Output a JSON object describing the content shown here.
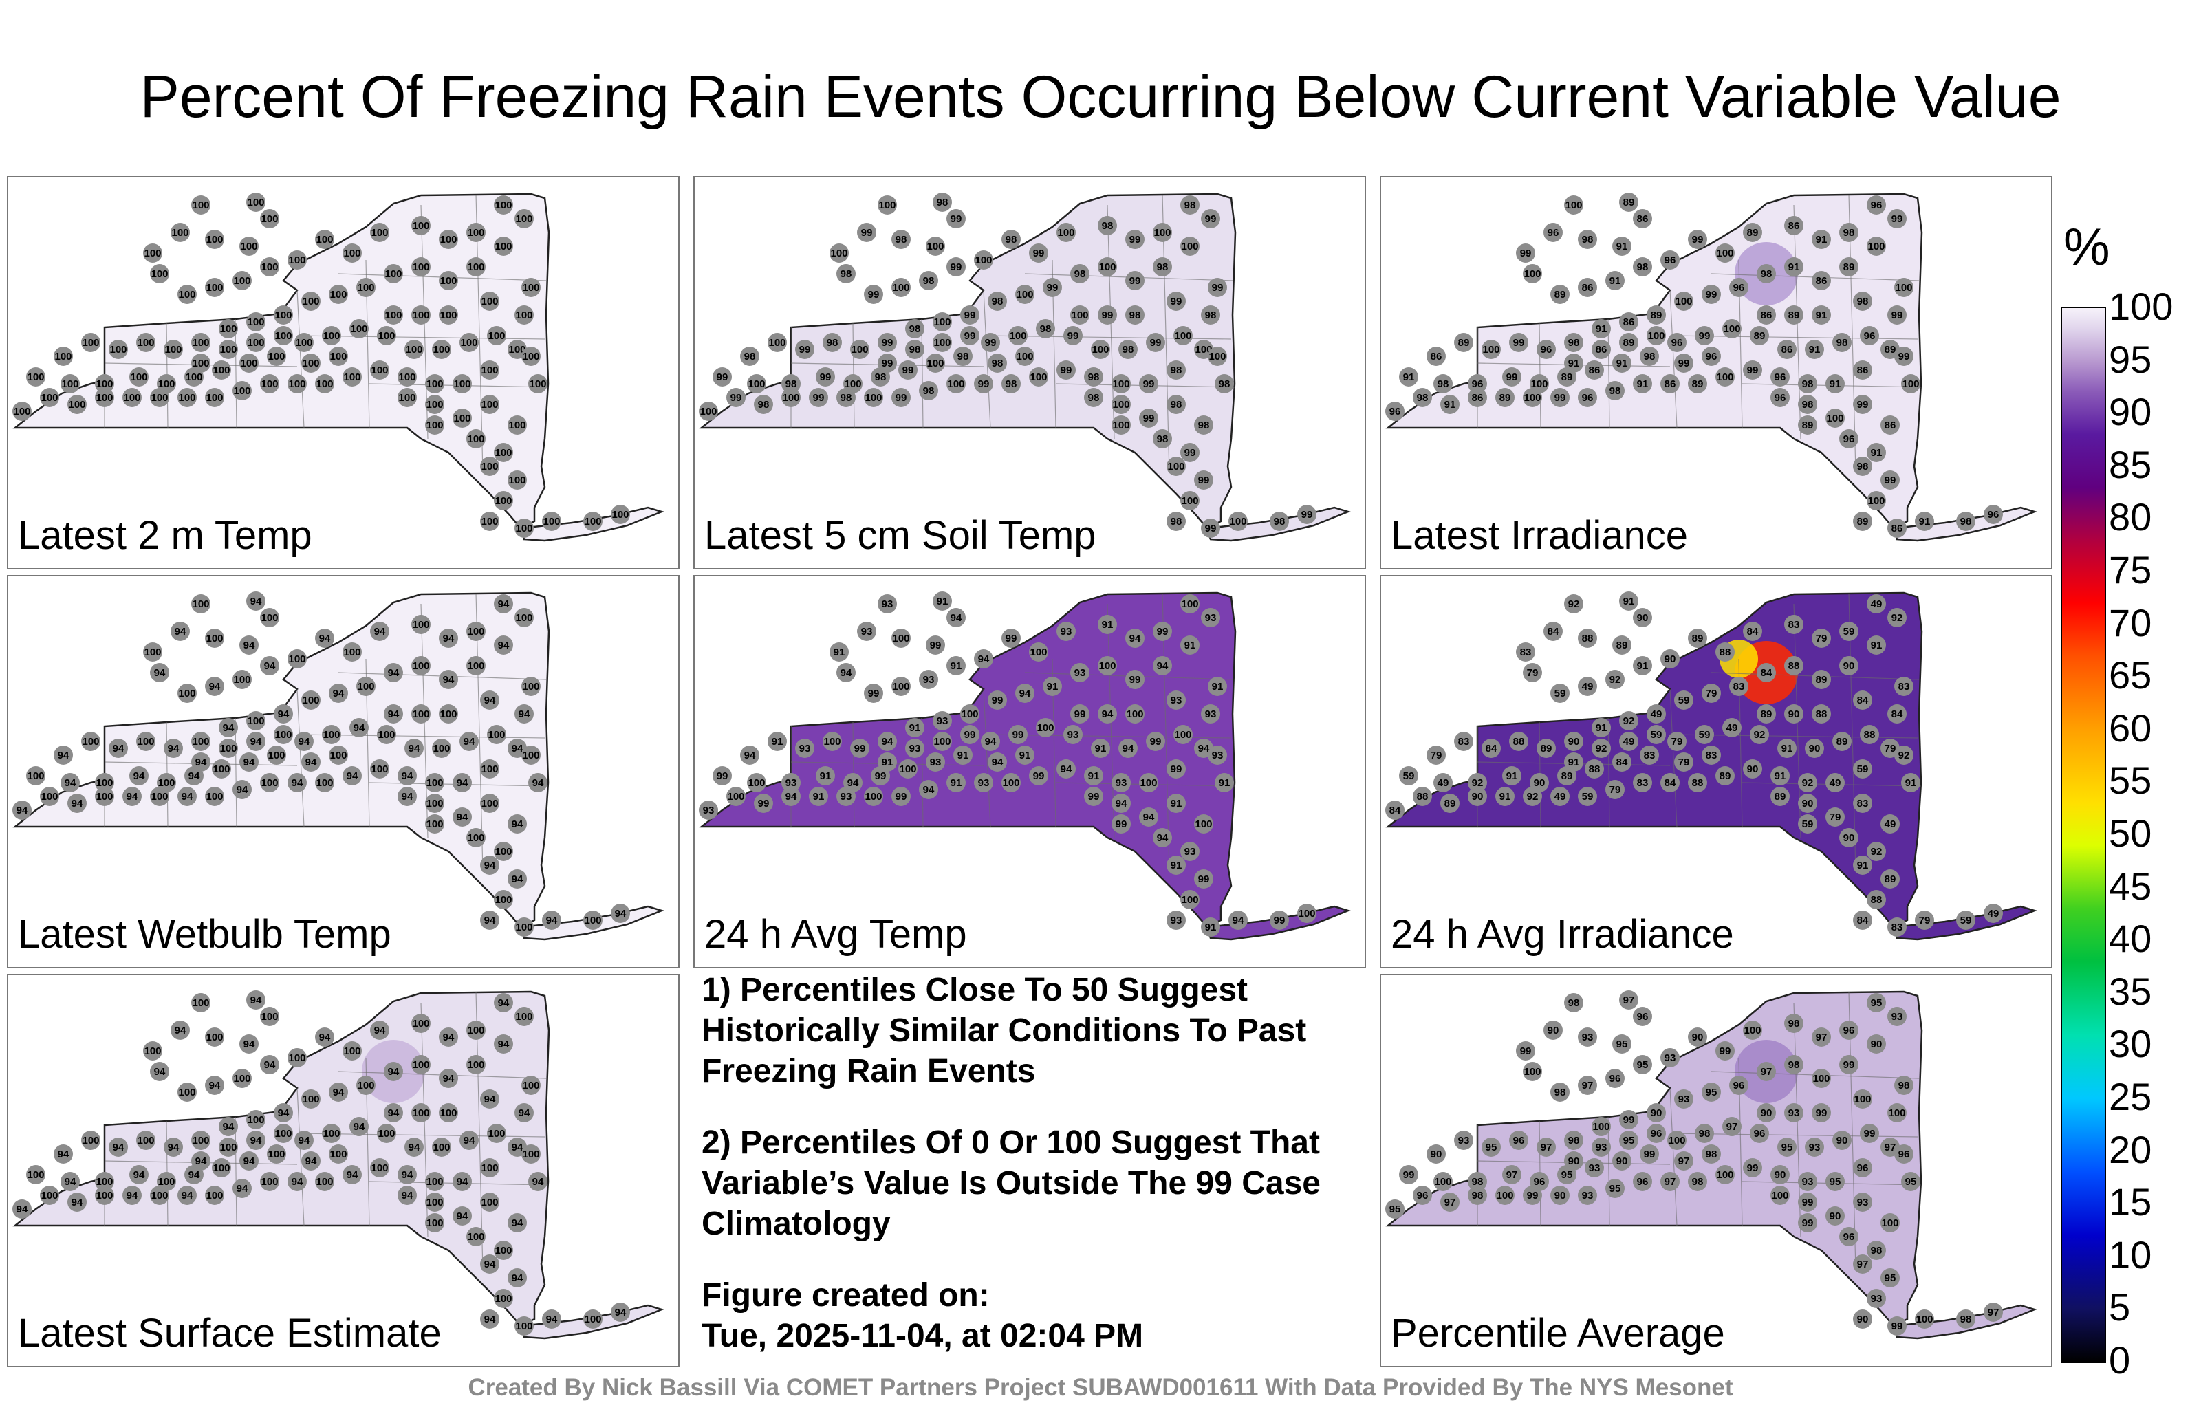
{
  "title": "Percent Of Freezing Rain Events Occurring Below Current Variable Value",
  "panels": [
    {
      "label": "Latest 2 m Temp",
      "fill": "#f3eff8",
      "hotspots": [],
      "values": [
        "100"
      ]
    },
    {
      "label": "Latest 5 cm Soil Temp",
      "fill": "#e7e0f0",
      "hotspots": [],
      "values": [
        "100",
        "98",
        "99"
      ]
    },
    {
      "label": "Latest Irradiance",
      "fill": "#ede6f4",
      "hotspots": [
        "#b49bd4"
      ],
      "values": [
        "100",
        "89",
        "86",
        "91",
        "98",
        "96",
        "99"
      ]
    },
    {
      "label": "Latest Wetbulb Temp",
      "fill": "#f3eff8",
      "hotspots": [],
      "values": [
        "100",
        "94"
      ]
    },
    {
      "label": "24 h Avg Temp",
      "fill": "#7b3fb0",
      "hotspots": [],
      "values": [
        "93",
        "91",
        "94",
        "99",
        "100"
      ]
    },
    {
      "label": "24 h Avg Irradiance",
      "fill": "#5b2a9c",
      "hotspots": [
        "#ff2a00",
        "#ffe000"
      ],
      "values": [
        "92",
        "91",
        "90",
        "89",
        "88",
        "84",
        "83",
        "79",
        "59",
        "49"
      ]
    },
    {
      "label": "Latest Surface Estimate",
      "fill": "#e7e0f0",
      "hotspots": [
        "#c8b4dc"
      ],
      "values": [
        "100",
        "94"
      ]
    },
    {
      "label": "Percentile Average",
      "fill": "#cbb9de",
      "hotspots": [
        "#a384c8"
      ],
      "values": [
        "98",
        "97",
        "96",
        "95",
        "93",
        "90",
        "99",
        "100"
      ]
    }
  ],
  "notes": {
    "line1": "1) Percentiles Close To 50 Suggest Historically Similar Conditions To Past Freezing Rain Events",
    "line2": "2) Percentiles Of 0 Or 100 Suggest That Variable’s Value Is Outside The 99 Case Climatology",
    "created_label": "Figure created on:",
    "created_value": "Tue, 2025-11-04, at 02:04 PM"
  },
  "colorbar": {
    "unit": "%",
    "ticks": [
      "100",
      "95",
      "90",
      "85",
      "80",
      "75",
      "70",
      "65",
      "60",
      "55",
      "50",
      "45",
      "40",
      "35",
      "30",
      "25",
      "20",
      "15",
      "10",
      "5",
      "0"
    ]
  },
  "credit": "Created By Nick Bassill Via COMET Partners Project SUBAWD001611 With Data Provided By The NYS Mesonet"
}
